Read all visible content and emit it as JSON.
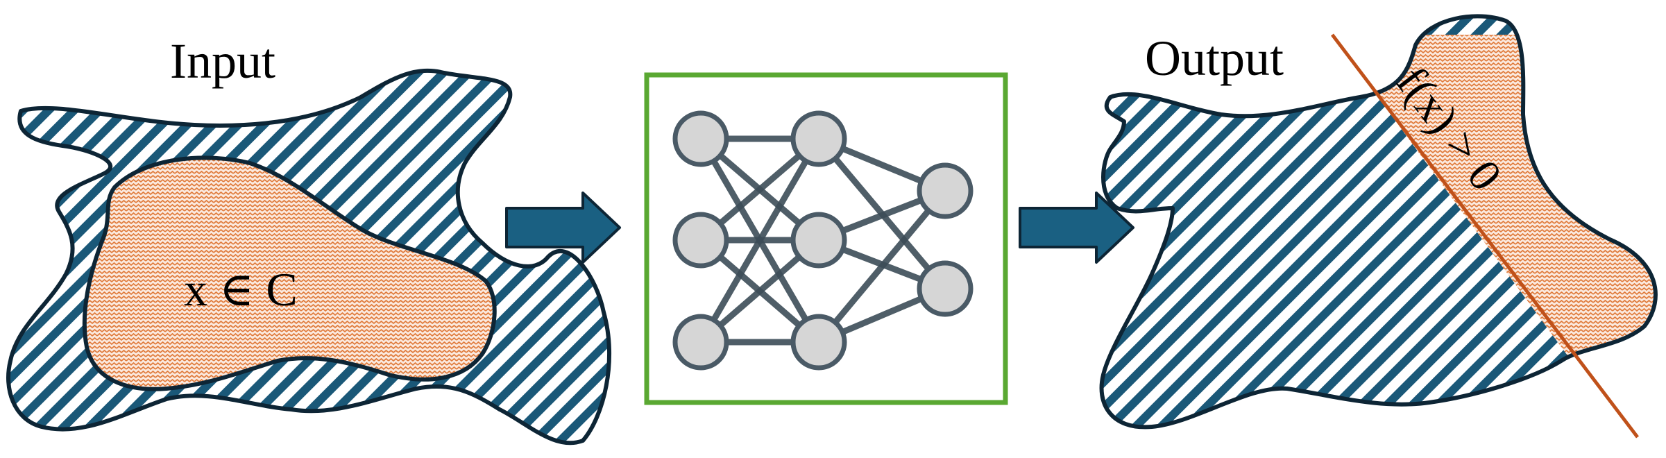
{
  "input": {
    "title": "Input",
    "region_label": "x ∈ C"
  },
  "output": {
    "title": "Output",
    "boundary_label": "f(x) > 0"
  },
  "colors": {
    "blue_hatch": "#1a5878",
    "orange_hatch": "#e07a3a",
    "outline": "#0d2535",
    "arrow_fill": "#1a6082",
    "box_border": "#5aa832",
    "node_fill": "#d6d6d6",
    "node_stroke": "#4a5a66",
    "edge": "#3c4c58",
    "boundary_line": "#c0511a"
  },
  "network": {
    "layers": [
      3,
      3,
      2
    ]
  }
}
